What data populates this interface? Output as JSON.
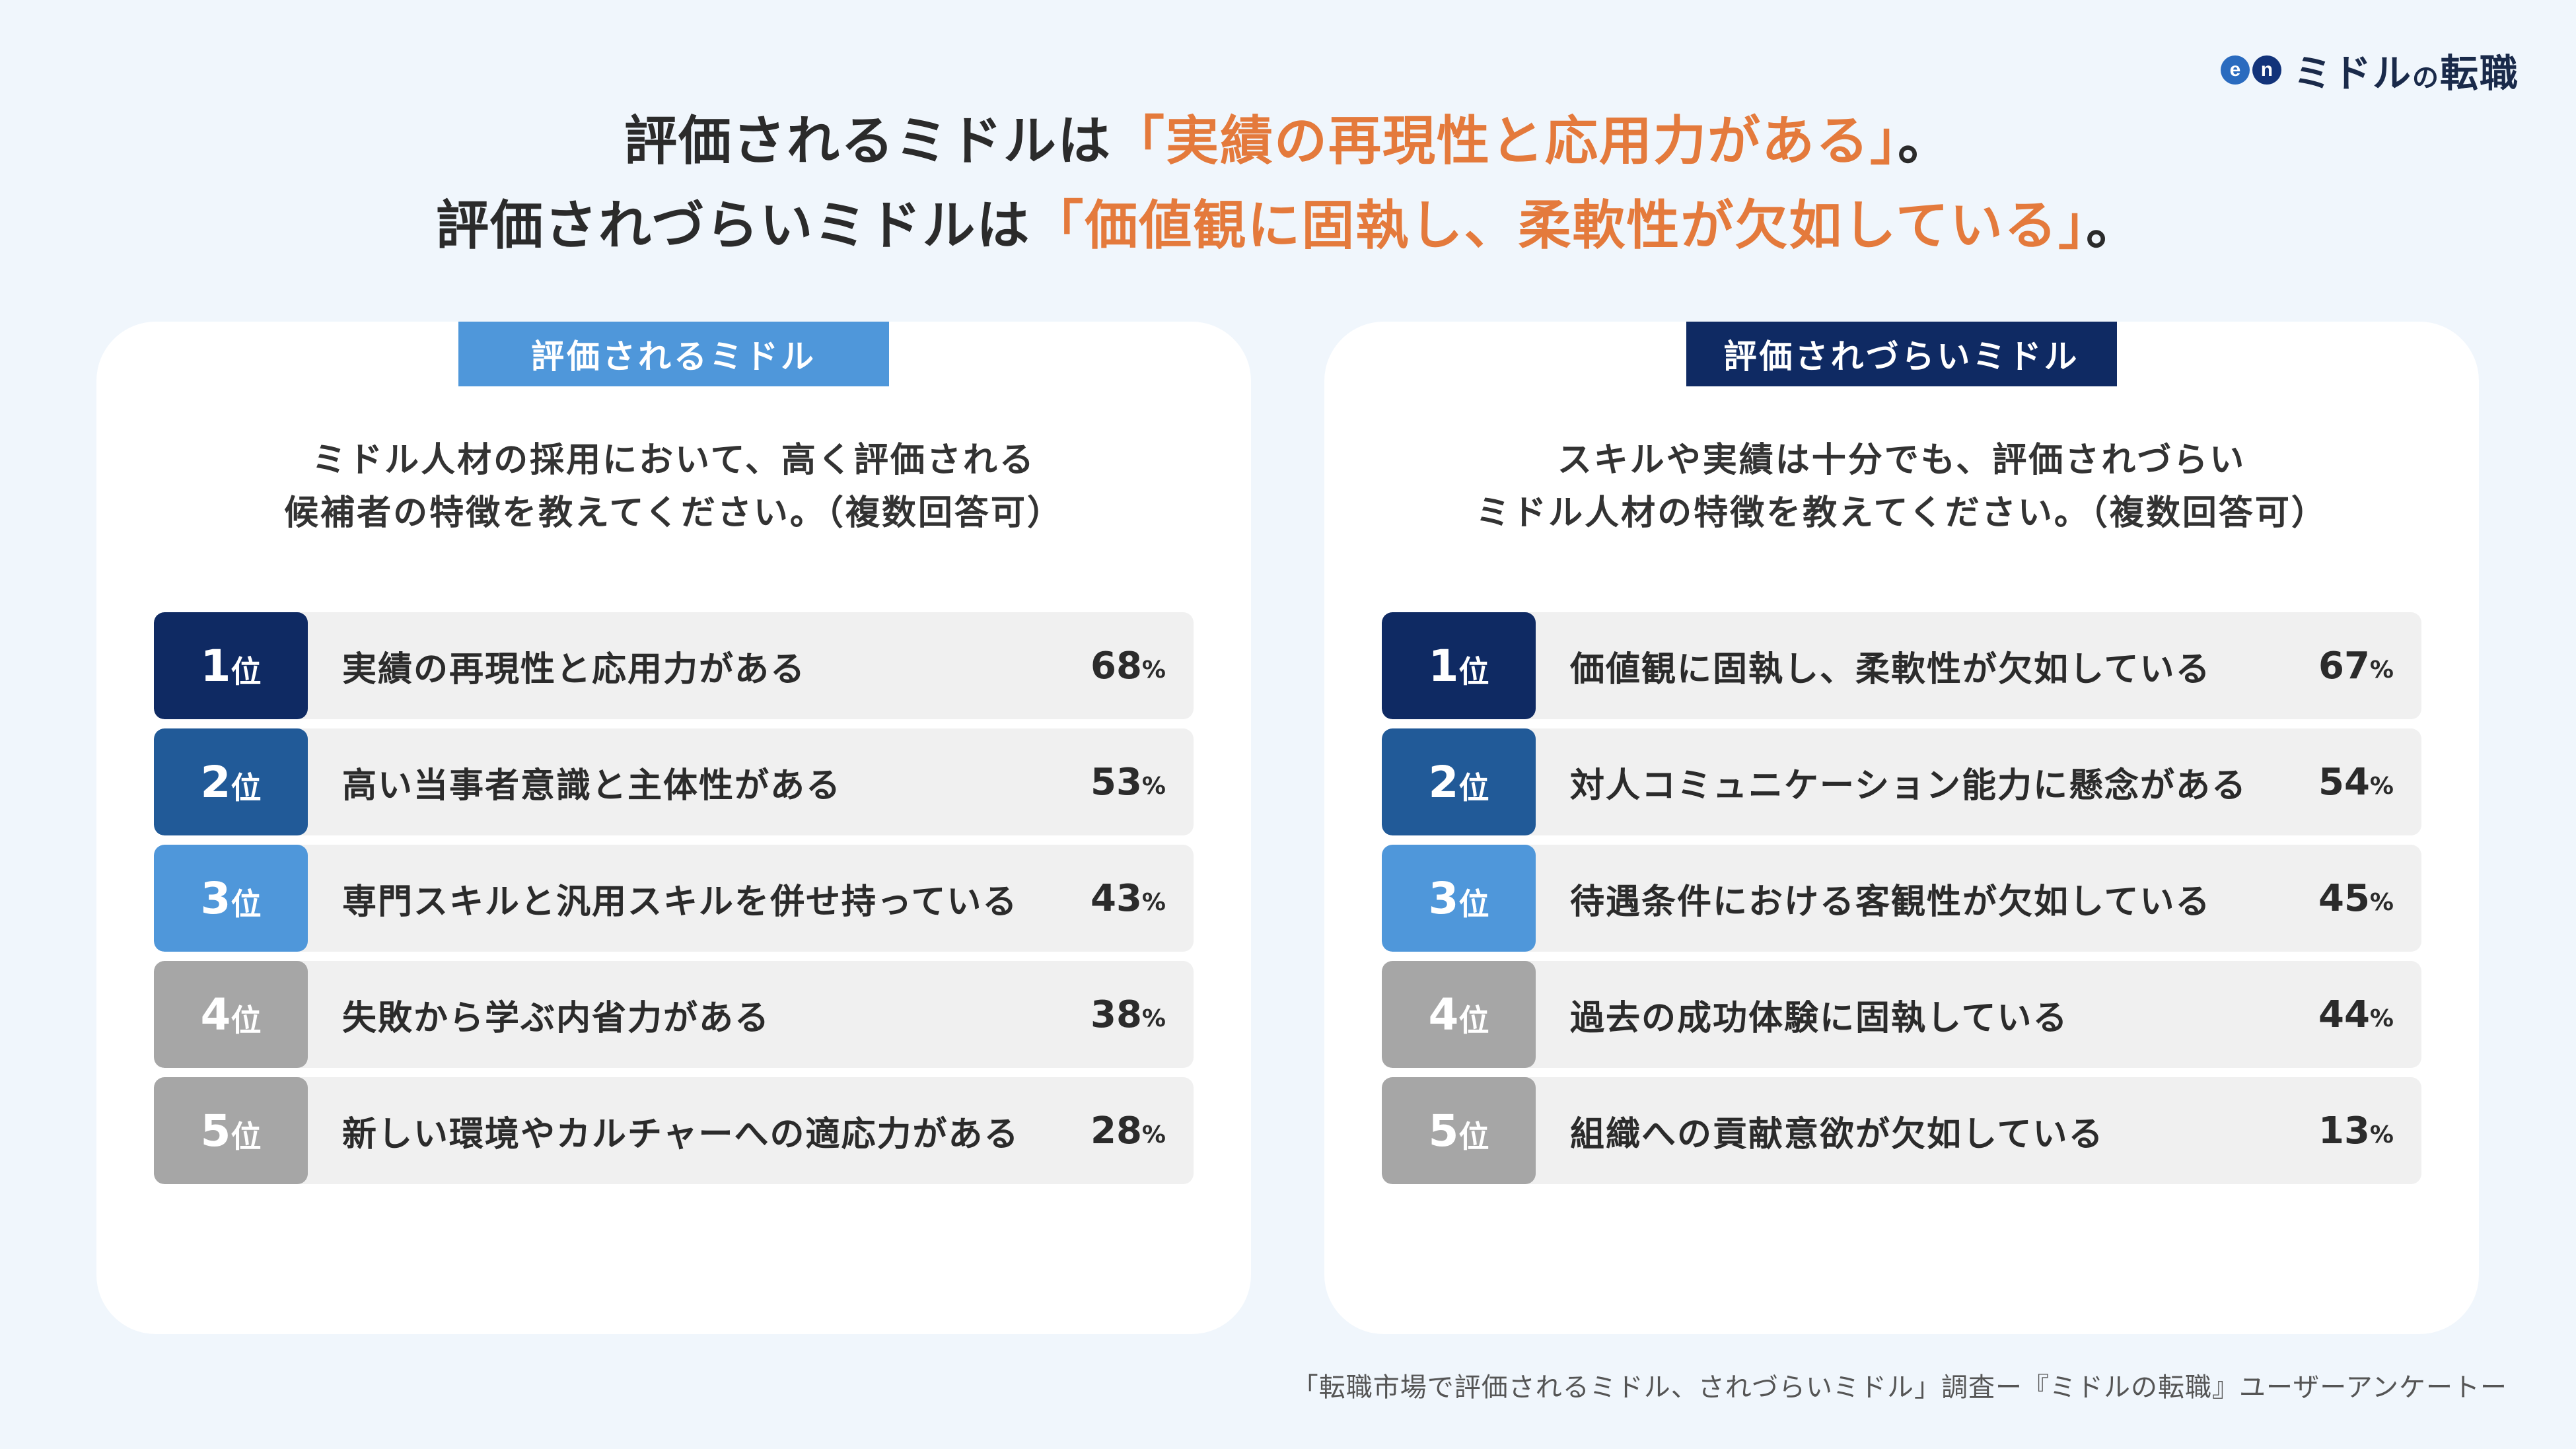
{
  "logo": {
    "mark_e": "e",
    "mark_n": "n",
    "text_1": "ミドル",
    "text_2": "の",
    "text_3": "転職"
  },
  "headline": {
    "line1_prefix": "評価されるミドルは",
    "line1_accent": "「実績の再現性と応用力がある」",
    "line1_suffix": "。",
    "line2_prefix": "評価されづらいミドルは",
    "line2_accent": "「価値観に固執し、柔軟性が欠如している」",
    "line2_suffix": "。",
    "accent_color": "#e47a3c"
  },
  "left_panel": {
    "badge": "評価されるミドル",
    "question_line1": "ミドル人材の採用において、高く評価される",
    "question_line2": "候補者の特徴を教えてください。（複数回答可）",
    "rank_suffix": "位",
    "pct_suffix": "%",
    "items": [
      {
        "rank": "1",
        "label": "実績の再現性と応用力がある",
        "value": "68",
        "color": "#0f2a63"
      },
      {
        "rank": "2",
        "label": "高い当事者意識と主体性がある",
        "value": "53",
        "color": "#215a98"
      },
      {
        "rank": "3",
        "label": "専門スキルと汎用スキルを併せ持っている",
        "value": "43",
        "color": "#4f97da"
      },
      {
        "rank": "4",
        "label": "失敗から学ぶ内省力がある",
        "value": "38",
        "color": "#a6a6a6"
      },
      {
        "rank": "5",
        "label": "新しい環境やカルチャーへの適応力がある",
        "value": "28",
        "color": "#a6a6a6"
      }
    ]
  },
  "right_panel": {
    "badge": "評価されづらいミドル",
    "question_line1": "スキルや実績は十分でも、評価されづらい",
    "question_line2": "ミドル人材の特徴を教えてください。（複数回答可）",
    "rank_suffix": "位",
    "pct_suffix": "%",
    "items": [
      {
        "rank": "1",
        "label": "価値観に固執し、柔軟性が欠如している",
        "value": "67",
        "color": "#0f2a63"
      },
      {
        "rank": "2",
        "label": "対人コミュニケーション能力に懸念がある",
        "value": "54",
        "color": "#215a98"
      },
      {
        "rank": "3",
        "label": "待遇条件における客観性が欠如している",
        "value": "45",
        "color": "#4f97da"
      },
      {
        "rank": "4",
        "label": "過去の成功体験に固執している",
        "value": "44",
        "color": "#a6a6a6"
      },
      {
        "rank": "5",
        "label": "組織への貢献意欲が欠如している",
        "value": "13",
        "color": "#a6a6a6"
      }
    ]
  },
  "footnote": "「転職市場で評価されるミドル、されづらいミドル」調査ー『ミドルの転職』ユーザーアンケートー"
}
